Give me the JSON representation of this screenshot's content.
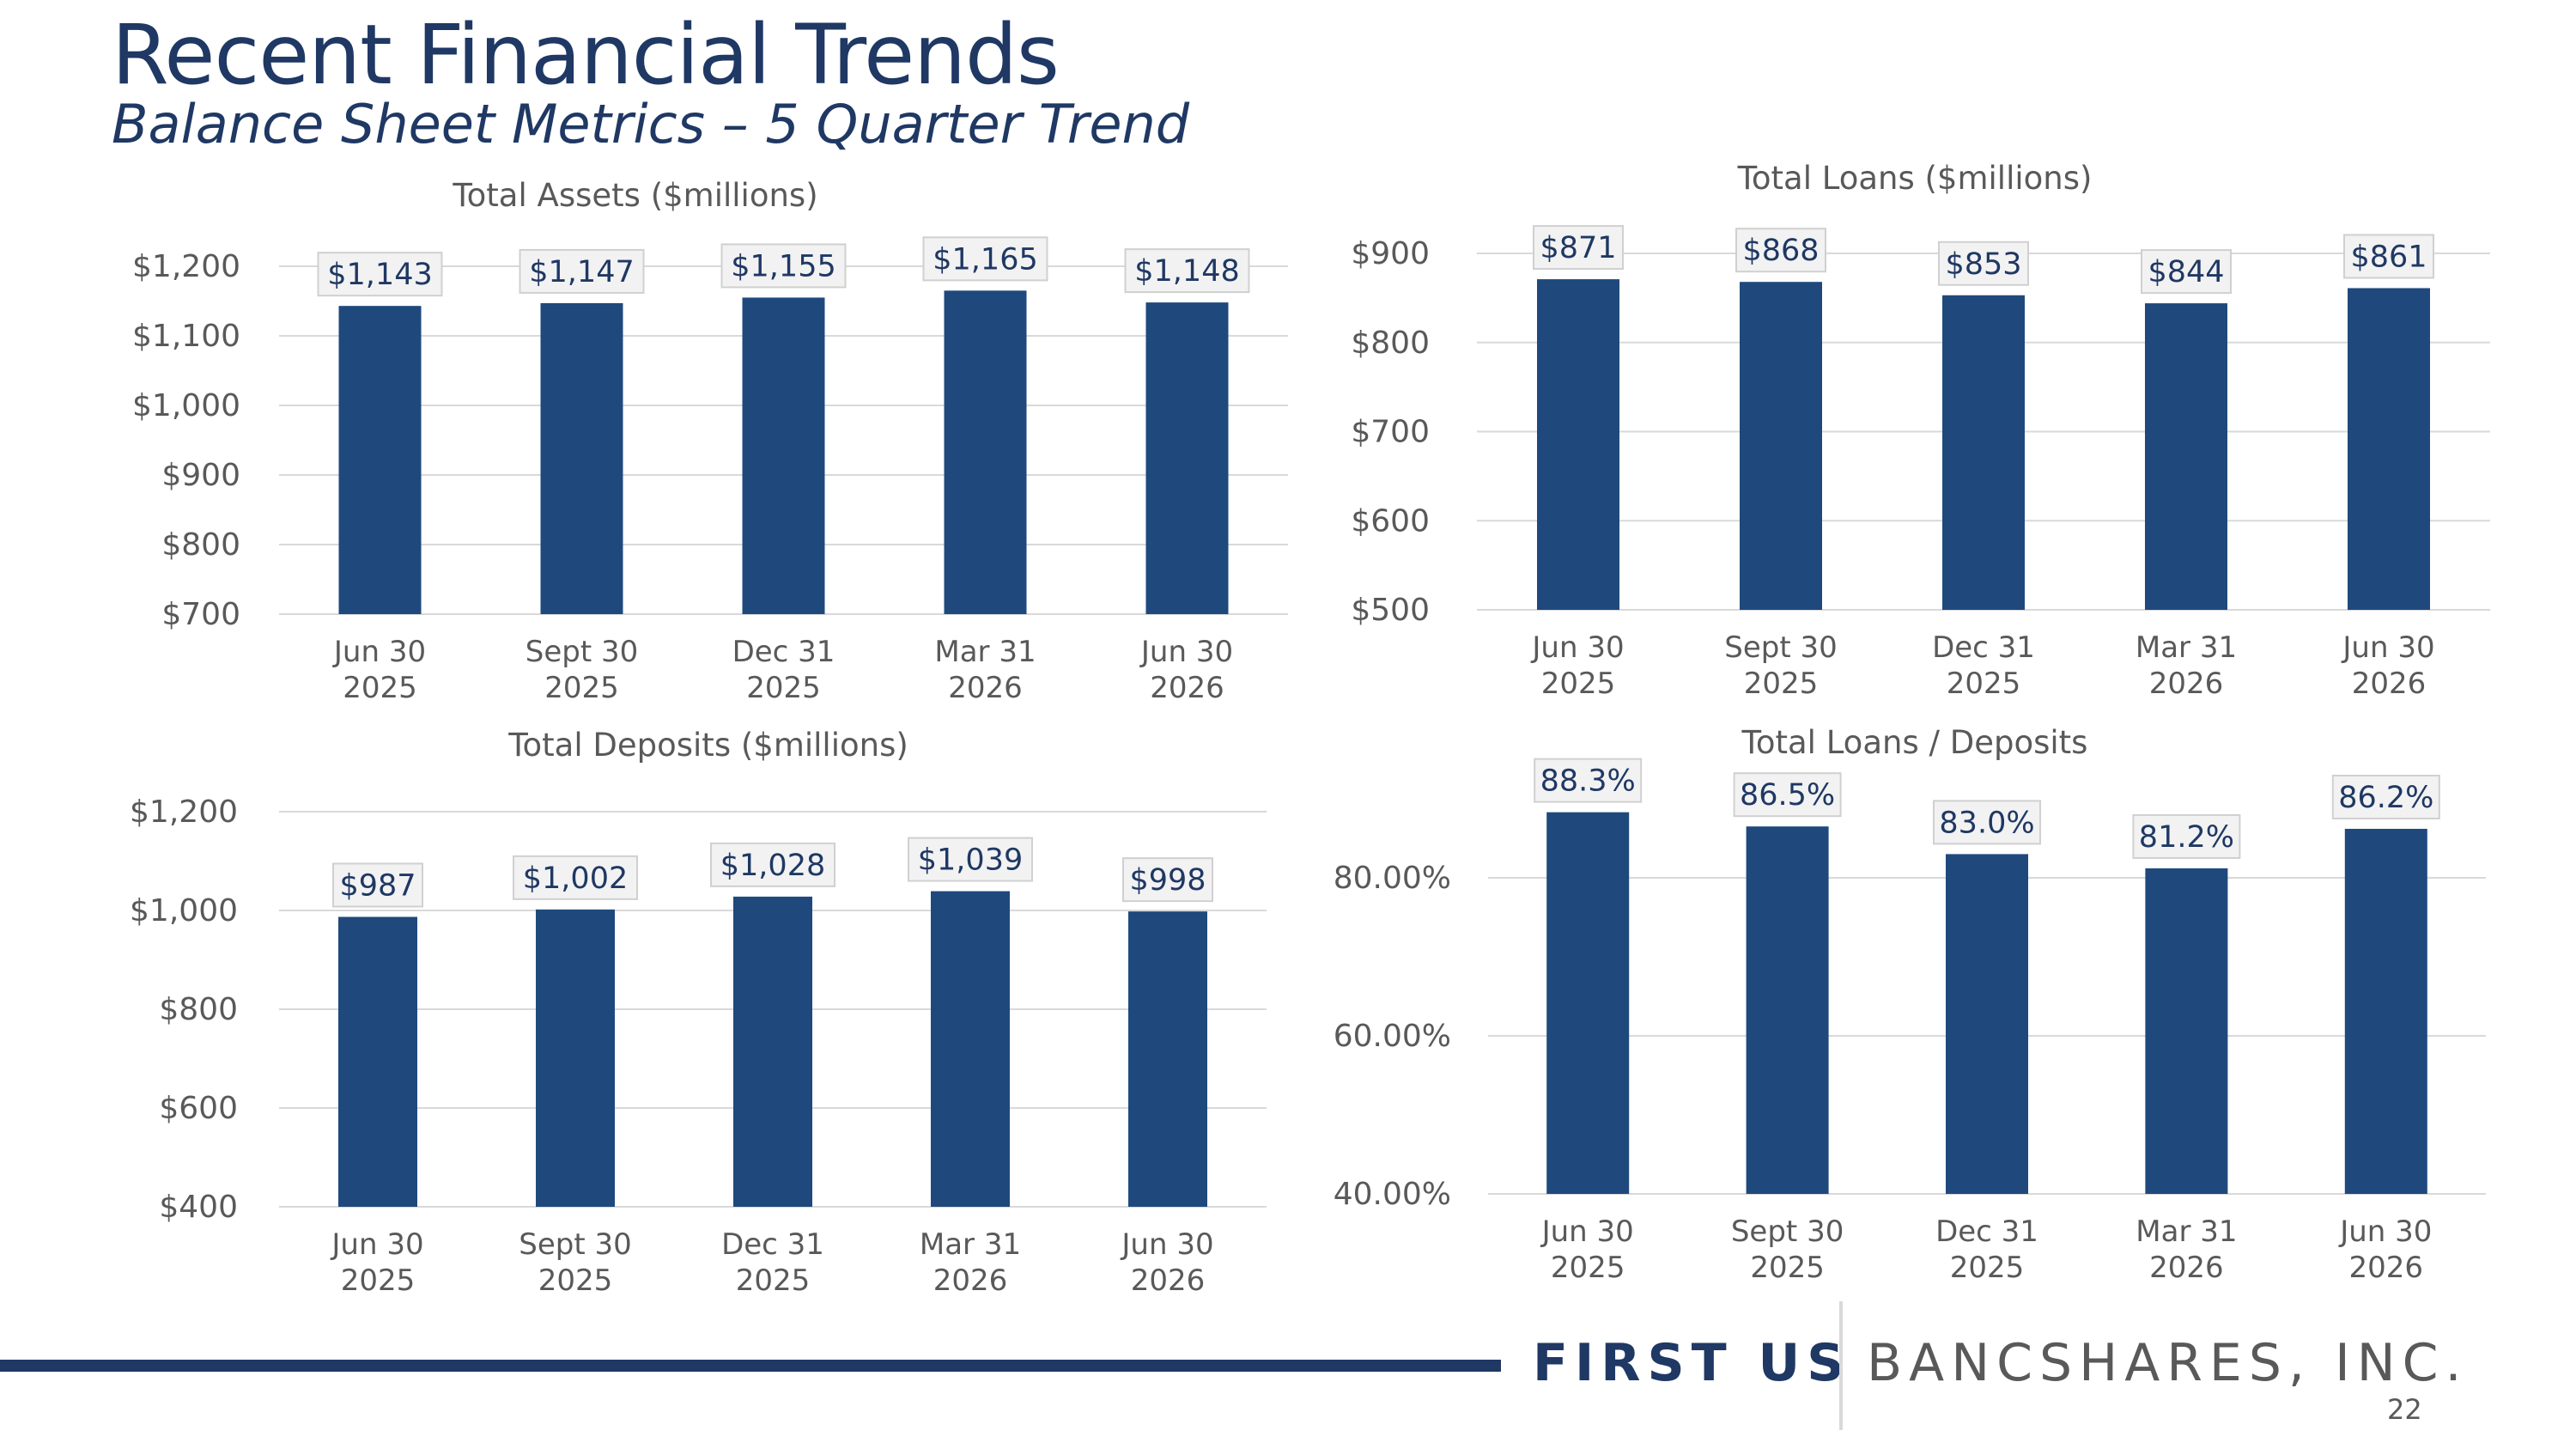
{
  "header": {
    "title": "Recent Financial Trends",
    "subtitle": "Balance Sheet Metrics – 5 Quarter Trend"
  },
  "colors": {
    "bar": "#1f497d",
    "label_bg": "#f2f2f2",
    "grid": "#d9d9d9",
    "accent": "#1f3864"
  },
  "chart_data": [
    {
      "type": "bar",
      "title": "Total Assets ($millions)",
      "categories": [
        [
          "Jun 30",
          "2025"
        ],
        [
          "Sept 30",
          "2025"
        ],
        [
          "Dec 31",
          "2025"
        ],
        [
          "Mar 31",
          "2026"
        ],
        [
          "Jun 30",
          "2026"
        ]
      ],
      "values": [
        1143,
        1147,
        1155,
        1165,
        1148
      ],
      "data_labels": [
        "$1,143",
        "$1,147",
        "$1,155",
        "$1,165",
        "$1,148"
      ],
      "ylim": [
        700,
        1200
      ],
      "yticks": [
        700,
        800,
        900,
        1000,
        1100,
        1200
      ],
      "ytick_labels": [
        "$700",
        "$800",
        "$900",
        "$1,000",
        "$1,100",
        "$1,200"
      ],
      "grid": true
    },
    {
      "type": "bar",
      "title": "Total Loans ($millions)",
      "categories": [
        [
          "Jun 30",
          "2025"
        ],
        [
          "Sept 30",
          "2025"
        ],
        [
          "Dec 31",
          "2025"
        ],
        [
          "Mar 31",
          "2026"
        ],
        [
          "Jun 30",
          "2026"
        ]
      ],
      "values": [
        871,
        868,
        853,
        844,
        861
      ],
      "data_labels": [
        "$871",
        "$868",
        "$853",
        "$844",
        "$861"
      ],
      "ylim": [
        500,
        900
      ],
      "yticks": [
        500,
        600,
        700,
        800,
        900
      ],
      "ytick_labels": [
        "$500",
        "$600",
        "$700",
        "$800",
        "$900"
      ],
      "grid": true
    },
    {
      "type": "bar",
      "title": "Total Deposits ($millions)",
      "categories": [
        [
          "Jun 30",
          "2025"
        ],
        [
          "Sept 30",
          "2025"
        ],
        [
          "Dec 31",
          "2025"
        ],
        [
          "Mar 31",
          "2026"
        ],
        [
          "Jun 30",
          "2026"
        ]
      ],
      "values": [
        987,
        1002,
        1028,
        1039,
        998
      ],
      "data_labels": [
        "$987",
        "$1,002",
        "$1,028",
        "$1,039",
        "$998"
      ],
      "ylim": [
        400,
        1200
      ],
      "yticks": [
        400,
        600,
        800,
        1000,
        1200
      ],
      "ytick_labels": [
        "$400",
        "$600",
        "$800",
        "$1,000",
        "$1,200"
      ],
      "grid": true
    },
    {
      "type": "bar",
      "title": "Total Loans / Deposits",
      "categories": [
        [
          "Jun 30",
          "2025"
        ],
        [
          "Sept 30",
          "2025"
        ],
        [
          "Dec 31",
          "2025"
        ],
        [
          "Mar 31",
          "2026"
        ],
        [
          "Jun 30",
          "2026"
        ]
      ],
      "values": [
        88.3,
        86.5,
        83.0,
        81.2,
        86.2
      ],
      "data_labels": [
        "88.3%",
        "86.5%",
        "83.0%",
        "81.2%",
        "86.2%"
      ],
      "ylim": [
        40,
        90
      ],
      "yticks": [
        40,
        60,
        80
      ],
      "ytick_labels": [
        "40.00%",
        "60.00%",
        "80.00%"
      ],
      "grid": true
    }
  ],
  "footer": {
    "logo_left": "FIRST US",
    "logo_right": "BANCSHARES, INC.",
    "page_number": "22"
  }
}
